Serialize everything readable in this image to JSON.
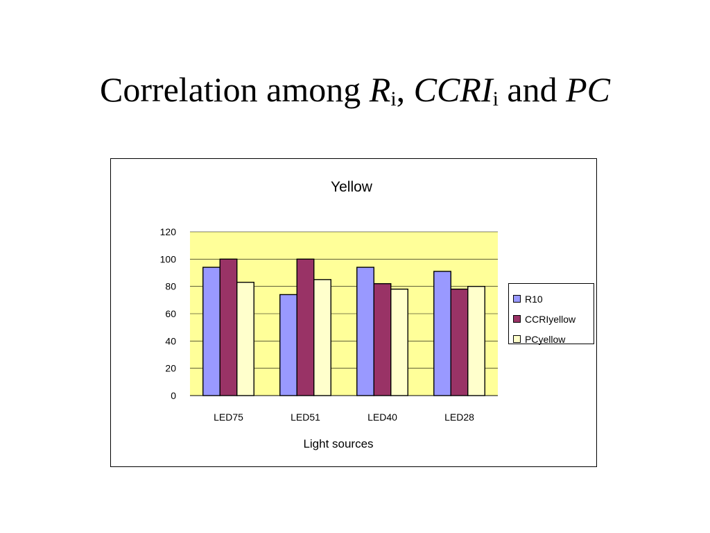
{
  "slide": {
    "title_parts": {
      "prefix": "Correlation among ",
      "r": "R",
      "r_sub": "i",
      "sep": ", ",
      "ccri": "CCRI",
      "ccri_sub": "i",
      "and": " and ",
      "pc": "PC"
    }
  },
  "chart_data": {
    "type": "bar",
    "title": "Yellow",
    "xlabel": "Light sources",
    "ylabel": "",
    "categories": [
      "LED75",
      "LED51",
      "LED40",
      "LED28"
    ],
    "series": [
      {
        "name": "R10",
        "values": [
          94,
          74,
          94,
          91
        ],
        "color": "#9999ff"
      },
      {
        "name": "CCRIyellow",
        "values": [
          100,
          100,
          82,
          78
        ],
        "color": "#993366"
      },
      {
        "name": "PCyellow",
        "values": [
          83,
          85,
          78,
          80
        ],
        "color": "#ffffcc"
      }
    ],
    "ylim": [
      0,
      120
    ],
    "yticks": [
      "0",
      "20",
      "40",
      "60",
      "80",
      "100",
      "120"
    ],
    "grid": true,
    "plot_background": "#ffff99",
    "legend_position": "right"
  }
}
